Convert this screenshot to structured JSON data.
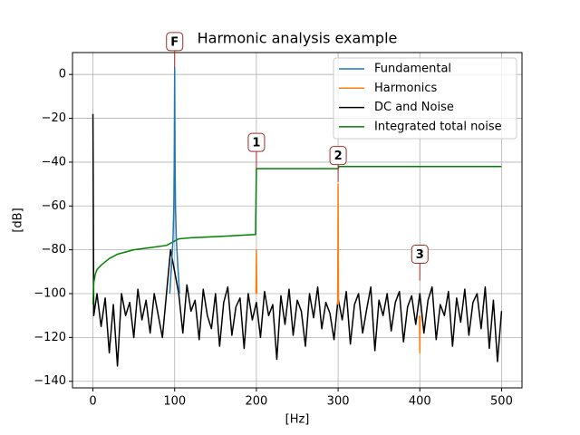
{
  "chart_data": {
    "type": "line",
    "title": "Harmonic analysis example",
    "x_label": "[Hz]",
    "y_label": "[dB]",
    "xlim": [
      -25,
      525
    ],
    "ylim": [
      -143,
      10
    ],
    "xticks": [
      0,
      100,
      200,
      300,
      400,
      500
    ],
    "yticks": [
      {
        "value": -140,
        "label": "−140"
      },
      {
        "value": -120,
        "label": "−120"
      },
      {
        "value": -100,
        "label": "−100"
      },
      {
        "value": -80,
        "label": "−80"
      },
      {
        "value": -60,
        "label": "−60"
      },
      {
        "value": -40,
        "label": "−40"
      },
      {
        "value": -20,
        "label": "−20"
      },
      0
    ],
    "grid": true,
    "legend": "upper right",
    "series": [
      {
        "name": "Fundamental",
        "color": "#1f77b4",
        "x": [
          94,
          96,
          98,
          99,
          99.5,
          100,
          100.5,
          101,
          102,
          104,
          106
        ],
        "values": [
          -100,
          -88,
          -75,
          -60,
          -40,
          3,
          -40,
          -60,
          -75,
          -88,
          -100
        ]
      },
      {
        "name": "Harmonics",
        "color": "#ff7f0e",
        "x": [
          199.5,
          200,
          200.5,
          250,
          299.5,
          300,
          300.5,
          350,
          399.5,
          400,
          400.5
        ],
        "values": [
          -100,
          -80,
          -100,
          null,
          -105,
          -50,
          -105,
          null,
          -110,
          -127,
          -110
        ]
      },
      {
        "name": "DC and Noise",
        "color": "#000000",
        "x": [
          0,
          1,
          5,
          10,
          15,
          20,
          25,
          30,
          35,
          40,
          45,
          50,
          55,
          60,
          65,
          70,
          75,
          80,
          85,
          90,
          95,
          100,
          105,
          110,
          115,
          120,
          125,
          130,
          135,
          140,
          145,
          150,
          155,
          160,
          165,
          170,
          175,
          180,
          185,
          190,
          195,
          200,
          205,
          210,
          215,
          220,
          225,
          230,
          235,
          240,
          245,
          250,
          255,
          260,
          265,
          270,
          275,
          280,
          285,
          290,
          295,
          300,
          305,
          310,
          315,
          320,
          325,
          330,
          335,
          340,
          345,
          350,
          355,
          360,
          365,
          370,
          375,
          380,
          385,
          390,
          395,
          400,
          405,
          410,
          415,
          420,
          425,
          430,
          435,
          440,
          445,
          450,
          455,
          460,
          465,
          470,
          475,
          480,
          485,
          490,
          495,
          500
        ],
        "values": [
          -18,
          -110,
          -100,
          -115,
          -102,
          -127,
          -105,
          -133,
          -100,
          -110,
          -104,
          -120,
          -98,
          -112,
          -103,
          -118,
          -100,
          -110,
          -120,
          -100,
          -80,
          -90,
          -100,
          -118,
          -96,
          -108,
          -103,
          -121,
          -98,
          -110,
          -116,
          -100,
          -124,
          -104,
          -97,
          -119,
          -106,
          -102,
          -125,
          -100,
          -112,
          -104,
          -120,
          -99,
          -110,
          -105,
          -130,
          -101,
          -114,
          -98,
          -119,
          -103,
          -108,
          -124,
          -100,
          -111,
          -97,
          -116,
          -104,
          -109,
          -121,
          -102,
          -112,
          -99,
          -123,
          -105,
          -100,
          -118,
          -107,
          -97,
          -126,
          -103,
          -110,
          -100,
          -117,
          -104,
          -99,
          -122,
          -106,
          -101,
          -114,
          -100,
          -118,
          -103,
          -97,
          -121,
          -105,
          -110,
          -99,
          -124,
          -102,
          -113,
          -98,
          -119,
          -104,
          -100,
          -116,
          -97,
          -125,
          -103,
          -131,
          -108
        ]
      },
      {
        "name": "Integrated total noise",
        "color": "#008000",
        "x": [
          0,
          1,
          3,
          5,
          10,
          20,
          30,
          50,
          70,
          90,
          95,
          100,
          105,
          120,
          150,
          199,
          200,
          250,
          300,
          301,
          400,
          500
        ],
        "values": [
          -105,
          -95,
          -91,
          -89,
          -87,
          -84,
          -82,
          -80,
          -79,
          -78,
          -77,
          -76,
          -75,
          -74.5,
          -74,
          -73,
          -43,
          -43,
          -43,
          -42,
          -42,
          -42
        ]
      }
    ],
    "annotations": [
      {
        "text": "F",
        "x": 100,
        "y": 3
      },
      {
        "text": "1",
        "x": 200,
        "y": -43
      },
      {
        "text": "2",
        "x": 300,
        "y": -49
      },
      {
        "text": "3",
        "x": 400,
        "y": -94
      }
    ]
  }
}
